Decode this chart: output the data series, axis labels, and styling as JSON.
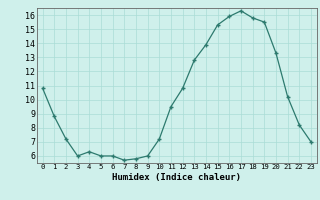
{
  "x": [
    0,
    1,
    2,
    3,
    4,
    5,
    6,
    7,
    8,
    9,
    10,
    11,
    12,
    13,
    14,
    15,
    16,
    17,
    18,
    19,
    20,
    21,
    22,
    23
  ],
  "y": [
    10.8,
    8.8,
    7.2,
    6.0,
    6.3,
    6.0,
    6.0,
    5.7,
    5.8,
    6.0,
    7.2,
    9.5,
    10.8,
    12.8,
    13.9,
    15.3,
    15.9,
    16.3,
    15.8,
    15.5,
    13.3,
    10.2,
    8.2,
    7.0
  ],
  "xlabel": "Humidex (Indice chaleur)",
  "bg_color": "#cff0eb",
  "line_color": "#2d7a6e",
  "marker_color": "#2d7a6e",
  "grid_color": "#aaddd6",
  "axis_color": "#666666",
  "ylim_min": 5.5,
  "ylim_max": 16.5,
  "xlim_min": -0.5,
  "xlim_max": 23.5,
  "yticks": [
    6,
    7,
    8,
    9,
    10,
    11,
    12,
    13,
    14,
    15,
    16
  ],
  "xticks": [
    0,
    1,
    2,
    3,
    4,
    5,
    6,
    7,
    8,
    9,
    10,
    11,
    12,
    13,
    14,
    15,
    16,
    17,
    18,
    19,
    20,
    21,
    22,
    23
  ],
  "xlabel_fontsize": 6.5,
  "ytick_fontsize": 6.0,
  "xtick_fontsize": 5.2
}
